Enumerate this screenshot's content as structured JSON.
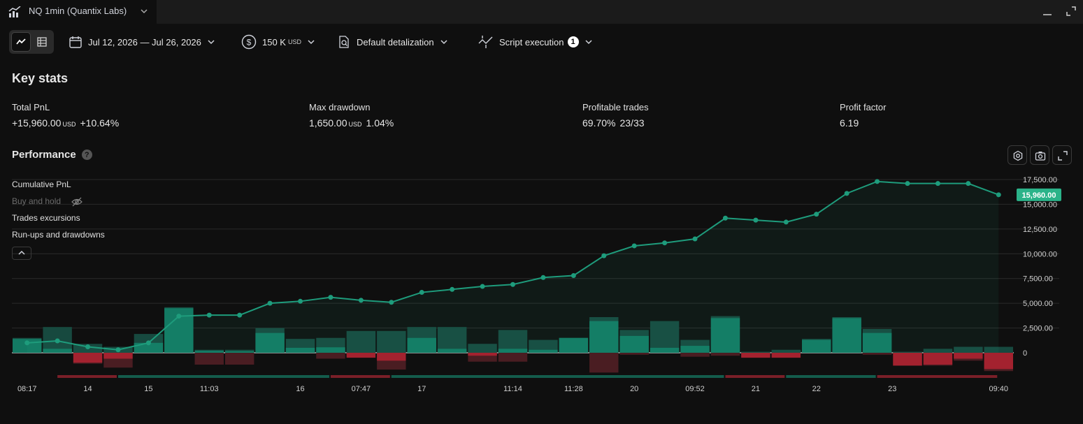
{
  "window": {
    "tab_title": "NQ 1min (Quantix Labs)"
  },
  "toolbar": {
    "date_range": "Jul 12, 2026 — Jul 26, 2026",
    "capital_value": "150 K",
    "capital_unit": "USD",
    "detalization": "Default detalization",
    "script_execution": "Script execution",
    "script_badge": "1"
  },
  "key_stats": {
    "title": "Key stats",
    "total_pnl": {
      "label": "Total PnL",
      "value": "+15,960.00",
      "unit": "USD",
      "pct": "+10.64%"
    },
    "max_drawdown": {
      "label": "Max drawdown",
      "value": "1,650.00",
      "unit": "USD",
      "pct": "1.04%"
    },
    "profitable_trades": {
      "label": "Profitable trades",
      "pct": "69.70%",
      "count": "23/33"
    },
    "profit_factor": {
      "label": "Profit factor",
      "value": "6.19"
    }
  },
  "performance": {
    "title": "Performance",
    "help": "?",
    "legend": {
      "cumulative": "Cumulative PnL",
      "buy_hold": "Buy and hold",
      "excursions": "Trades excursions",
      "runups": "Run-ups and drawdowns"
    }
  },
  "colors": {
    "green": "#2bb389",
    "red": "#c4293a",
    "line": "#1e9c7c"
  },
  "chart_data": {
    "type": "line",
    "ylim": [
      -2500,
      17500
    ],
    "y_ticks": [
      "17,500.00",
      "15,000.00",
      "12,500.00",
      "10,000.00",
      "7,500.00",
      "5,000.00",
      "2,500.00",
      "0"
    ],
    "y_tick_values": [
      17500,
      15000,
      12500,
      10000,
      7500,
      5000,
      2500,
      0
    ],
    "last_value_label": "15,960.00",
    "last_value": 15960,
    "x_ticks": [
      "08:17",
      "14",
      "15",
      "11:03",
      "16",
      "07:47",
      "17",
      "11:14",
      "11:28",
      "20",
      "09:52",
      "21",
      "22",
      "23",
      "09:40"
    ],
    "x_tick_trades": [
      0.5,
      2.5,
      4.5,
      6.5,
      9.5,
      11.5,
      13.5,
      16.5,
      18.5,
      20.5,
      22.5,
      24.5,
      26.5,
      29,
      32.5
    ],
    "series": [
      {
        "values": [
          1000,
          1200,
          600,
          300,
          1000,
          3700,
          3800,
          3800,
          5000,
          5200,
          5600,
          5300,
          5100,
          6100,
          6400,
          6700,
          6900,
          7600,
          7800,
          9800,
          10800,
          11100,
          11500,
          13600,
          13400,
          13200,
          14000,
          16100,
          17300,
          17100,
          17100,
          17100,
          15960
        ]
      }
    ],
    "runups": [
      1500,
      2600,
      900,
      600,
      1900,
      4600,
      300,
      300,
      2500,
      1400,
      1500,
      2200,
      2200,
      2600,
      2600,
      900,
      2300,
      1300,
      1500,
      3600,
      2300,
      3200,
      1300,
      3700,
      100,
      300,
      1400,
      3600,
      2400,
      100,
      400,
      600,
      600
    ],
    "trade_pnl": [
      1400,
      400,
      -1000,
      -600,
      1000,
      4500,
      200,
      150,
      2000,
      500,
      550,
      -500,
      -800,
      1500,
      400,
      -300,
      400,
      300,
      1500,
      3200,
      1700,
      500,
      700,
      3500,
      -500,
      -500,
      1300,
      3500,
      2000,
      -1300,
      -1200,
      -600,
      -1650
    ],
    "drawdowns": [
      0,
      0,
      -1100,
      -1500,
      0,
      0,
      -1200,
      -1200,
      0,
      0,
      -600,
      -200,
      -1700,
      0,
      0,
      -900,
      -900,
      0,
      0,
      -2000,
      -200,
      0,
      -400,
      -300,
      -500,
      -500,
      0,
      0,
      -200,
      -1300,
      -1300,
      -800,
      -1850
    ],
    "position_bars": [
      {
        "from": 1.5,
        "to": 3.5,
        "side": "short"
      },
      {
        "from": 3.5,
        "to": 10.5,
        "side": "long"
      },
      {
        "from": 10.5,
        "to": 12.5,
        "side": "short"
      },
      {
        "from": 12.5,
        "to": 23.5,
        "side": "long"
      },
      {
        "from": 23.5,
        "to": 25.5,
        "side": "short"
      },
      {
        "from": 25.5,
        "to": 28.5,
        "side": "long"
      },
      {
        "from": 28.5,
        "to": 32.5,
        "side": "short"
      }
    ]
  }
}
